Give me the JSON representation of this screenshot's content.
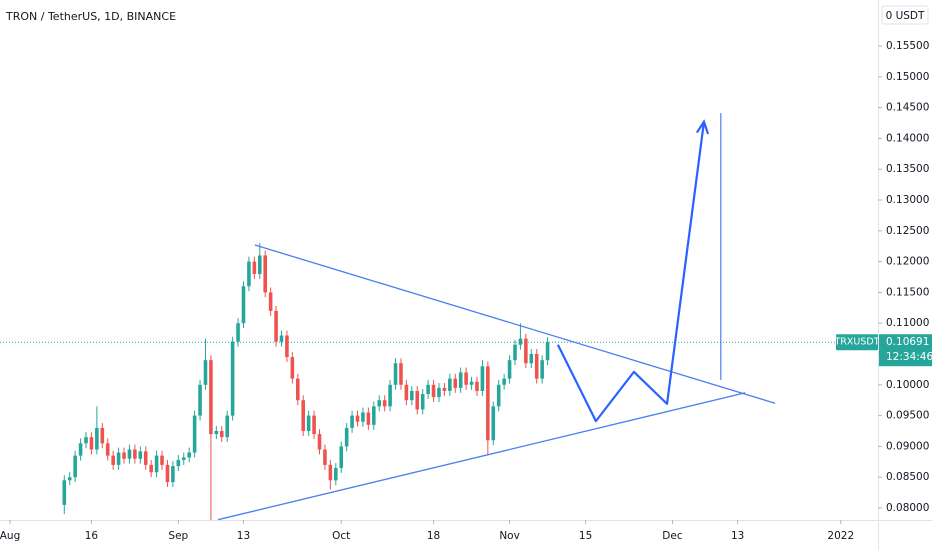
{
  "chart_data": {
    "type": "candlestick",
    "title": "TRON / TetherUS, 1D, BINANCE",
    "currency_label": "0 USDT",
    "symbol": "TRXUSDT",
    "countdown": "12:34:46",
    "up_color": "#26a69a",
    "down_color": "#ef5350",
    "x": [
      10,
      11,
      12,
      13,
      14,
      15,
      16,
      17,
      18,
      19,
      20,
      21,
      22,
      23,
      24,
      25,
      26,
      27,
      28,
      29,
      30,
      31,
      32,
      33,
      34,
      35,
      36,
      37,
      38,
      39,
      40,
      41,
      42,
      43,
      44,
      45,
      46,
      47,
      48,
      49,
      50,
      51,
      52,
      53,
      54,
      55,
      56,
      57,
      58,
      59,
      60,
      61,
      62,
      63,
      64,
      65,
      66,
      67,
      68,
      69,
      70,
      71,
      72,
      73,
      74,
      75,
      76,
      77,
      78,
      79,
      80,
      81,
      82,
      83,
      84,
      85,
      86,
      87,
      88,
      89,
      90,
      91,
      92,
      93,
      94,
      95,
      96,
      97,
      98,
      99
    ],
    "open": [
      0.0805,
      0.0845,
      0.085,
      0.0885,
      0.0905,
      0.0915,
      0.0895,
      0.093,
      0.0905,
      0.0885,
      0.087,
      0.089,
      0.088,
      0.0895,
      0.088,
      0.0892,
      0.087,
      0.0858,
      0.0885,
      0.087,
      0.0842,
      0.0868,
      0.0878,
      0.0882,
      0.089,
      0.095,
      0.1,
      0.104,
      0.092,
      0.0925,
      0.0915,
      0.095,
      0.107,
      0.11,
      0.116,
      0.12,
      0.118,
      0.121,
      0.115,
      0.112,
      0.107,
      0.108,
      0.1045,
      0.101,
      0.0975,
      0.0925,
      0.095,
      0.092,
      0.0895,
      0.087,
      0.0845,
      0.0865,
      0.09,
      0.093,
      0.095,
      0.094,
      0.0955,
      0.0935,
      0.0965,
      0.0975,
      0.0965,
      0.1,
      0.1035,
      0.1,
      0.0975,
      0.099,
      0.096,
      0.0985,
      0.1,
      0.098,
      0.0995,
      0.099,
      0.101,
      0.0995,
      0.102,
      0.1,
      0.1005,
      0.099,
      0.103,
      0.091,
      0.0965,
      0.1,
      0.101,
      0.104,
      0.1065,
      0.1075,
      0.1035,
      0.105,
      0.101,
      0.104
    ],
    "high": [
      0.0853,
      0.0858,
      0.0893,
      0.0913,
      0.0923,
      0.0923,
      0.0965,
      0.0938,
      0.0913,
      0.0893,
      0.0898,
      0.0898,
      0.0903,
      0.0903,
      0.09,
      0.09,
      0.0878,
      0.0893,
      0.0893,
      0.0878,
      0.0876,
      0.0886,
      0.089,
      0.0898,
      0.0958,
      0.1008,
      0.1075,
      0.1048,
      0.0933,
      0.0933,
      0.0958,
      0.1078,
      0.1108,
      0.1168,
      0.1208,
      0.1208,
      0.123,
      0.1218,
      0.1158,
      0.1128,
      0.1088,
      0.1088,
      0.1053,
      0.1018,
      0.0983,
      0.0958,
      0.0958,
      0.0928,
      0.0903,
      0.0878,
      0.0873,
      0.0908,
      0.0938,
      0.0958,
      0.0958,
      0.0963,
      0.0963,
      0.0973,
      0.0983,
      0.0983,
      0.1008,
      0.1043,
      0.1043,
      0.1008,
      0.0998,
      0.0998,
      0.0993,
      0.1008,
      0.1008,
      0.1003,
      0.1003,
      0.1018,
      0.1018,
      0.1028,
      0.1028,
      0.1013,
      0.1013,
      0.104,
      0.1038,
      0.0973,
      0.1008,
      0.1018,
      0.1048,
      0.1073,
      0.11,
      0.1083,
      0.1058,
      0.1058,
      0.1048,
      0.1077
    ],
    "low": [
      0.079,
      0.0837,
      0.0842,
      0.0877,
      0.0897,
      0.0887,
      0.0887,
      0.0897,
      0.0877,
      0.0862,
      0.0862,
      0.0872,
      0.0872,
      0.0872,
      0.0872,
      0.0862,
      0.085,
      0.085,
      0.0862,
      0.0834,
      0.0834,
      0.086,
      0.087,
      0.0874,
      0.0882,
      0.0942,
      0.0992,
      0.078,
      0.0912,
      0.0907,
      0.0907,
      0.0942,
      0.1062,
      0.1092,
      0.1152,
      0.1172,
      0.1172,
      0.1142,
      0.1112,
      0.1062,
      0.1062,
      0.1037,
      0.1002,
      0.0967,
      0.0917,
      0.0917,
      0.0912,
      0.0887,
      0.0862,
      0.083,
      0.0837,
      0.0857,
      0.0892,
      0.0922,
      0.0932,
      0.0932,
      0.0927,
      0.0927,
      0.0957,
      0.0957,
      0.0957,
      0.0992,
      0.0992,
      0.0967,
      0.0967,
      0.0952,
      0.0952,
      0.0977,
      0.0972,
      0.0972,
      0.0982,
      0.0982,
      0.0987,
      0.0987,
      0.0992,
      0.0992,
      0.0982,
      0.0982,
      0.0885,
      0.0902,
      0.0957,
      0.0992,
      0.1002,
      0.1032,
      0.1057,
      0.1027,
      0.1027,
      0.1002,
      0.1002,
      0.1032
    ],
    "close": [
      0.0845,
      0.085,
      0.0885,
      0.0905,
      0.0915,
      0.0895,
      0.093,
      0.0905,
      0.0885,
      0.087,
      0.089,
      0.088,
      0.0895,
      0.088,
      0.0892,
      0.087,
      0.0858,
      0.0885,
      0.087,
      0.0842,
      0.0868,
      0.0878,
      0.0882,
      0.089,
      0.095,
      0.1,
      0.104,
      0.092,
      0.0925,
      0.0915,
      0.095,
      0.107,
      0.11,
      0.116,
      0.12,
      0.118,
      0.121,
      0.115,
      0.112,
      0.107,
      0.108,
      0.1045,
      0.101,
      0.0975,
      0.0925,
      0.095,
      0.092,
      0.0895,
      0.087,
      0.0845,
      0.0865,
      0.09,
      0.093,
      0.095,
      0.094,
      0.0955,
      0.0935,
      0.0965,
      0.0975,
      0.0965,
      0.1,
      0.1035,
      0.1,
      0.0975,
      0.099,
      0.096,
      0.0985,
      0.1,
      0.098,
      0.0995,
      0.099,
      0.101,
      0.0995,
      0.102,
      0.1,
      0.1005,
      0.099,
      0.103,
      0.091,
      0.0965,
      0.1,
      0.101,
      0.104,
      0.1065,
      0.1075,
      0.1035,
      0.105,
      0.101,
      0.104,
      0.10691
    ],
    "xlim": [
      -1.84,
      159.85
    ],
    "ylim": [
      0.07805,
      0.16247
    ],
    "xticks": [
      {
        "value": 0,
        "label": "Aug"
      },
      {
        "value": 15,
        "label": "16"
      },
      {
        "value": 31,
        "label": "Sep"
      },
      {
        "value": 43,
        "label": "13"
      },
      {
        "value": 61,
        "label": "Oct"
      },
      {
        "value": 78,
        "label": "18"
      },
      {
        "value": 92,
        "label": "Nov"
      },
      {
        "value": 106,
        "label": "15"
      },
      {
        "value": 122,
        "label": "Dec"
      },
      {
        "value": 134,
        "label": "13"
      },
      {
        "value": 153,
        "label": "2022"
      }
    ],
    "yticks": [
      {
        "value": 0.155,
        "label": "0.15500"
      },
      {
        "value": 0.15,
        "label": "0.15000"
      },
      {
        "value": 0.145,
        "label": "0.14500"
      },
      {
        "value": 0.14,
        "label": "0.14000"
      },
      {
        "value": 0.135,
        "label": "0.13500"
      },
      {
        "value": 0.13,
        "label": "0.13000"
      },
      {
        "value": 0.125,
        "label": "0.12500"
      },
      {
        "value": 0.12,
        "label": "0.12000"
      },
      {
        "value": 0.115,
        "label": "0.11500"
      },
      {
        "value": 0.11,
        "label": "0.11000"
      },
      {
        "value": 0.105,
        "label": "0.10500"
      },
      {
        "value": 0.1,
        "label": "0.10000"
      },
      {
        "value": 0.095,
        "label": "0.09500"
      },
      {
        "value": 0.09,
        "label": "0.09000"
      },
      {
        "value": 0.085,
        "label": "0.08500"
      },
      {
        "value": 0.08,
        "label": "0.08000"
      }
    ],
    "drawings": [
      {
        "x": [
          45.1,
          140.9
        ],
        "y": [
          0.1227,
          0.097
        ],
        "color": "#4a7ef0",
        "width": 1.3
      },
      {
        "x": [
          38.3,
          135.4
        ],
        "y": [
          0.0781,
          0.0987
        ],
        "color": "#4a7ef0",
        "width": 1.3
      },
      {
        "x": [
          100.9,
          107.9,
          114.9,
          121.0,
          127.8
        ],
        "y": [
          0.1065,
          0.0941,
          0.1021,
          0.0969,
          0.1427
        ],
        "color": "#2962ff",
        "width": 2.2,
        "arrow": true
      },
      {
        "x": [
          130.9,
          130.9
        ],
        "y": [
          0.1441,
          0.1008
        ],
        "color": "#4a7ef0",
        "width": 1.2
      }
    ]
  }
}
